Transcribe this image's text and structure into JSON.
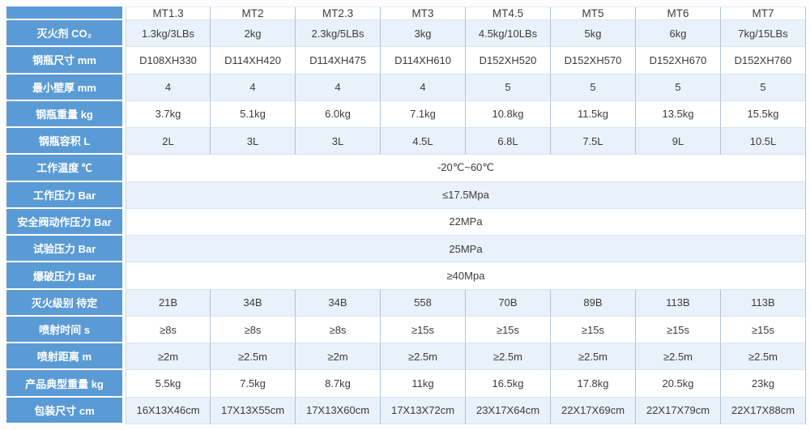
{
  "table": {
    "columns": [
      "",
      "MT1.3",
      "MT2",
      "MT2.3",
      "MT3",
      "MT4.5",
      "MT5",
      "MT6",
      "MT7"
    ],
    "rows": [
      {
        "label": "灭火剂 CO₂",
        "type": "cells",
        "values": [
          "1.3kg/3LBs",
          "2kg",
          "2.3kg/5LBs",
          "3kg",
          "4.5kg/10LBs",
          "5kg",
          "6kg",
          "7kg/15LBs"
        ]
      },
      {
        "label": "钢瓶尺寸 mm",
        "type": "cells",
        "values": [
          "D108XH330",
          "D114XH420",
          "D114XH475",
          "D114XH610",
          "D152XH520",
          "D152XH570",
          "D152XH670",
          "D152XH760"
        ]
      },
      {
        "label": "最小壁厚 mm",
        "type": "cells",
        "values": [
          "4",
          "4",
          "4",
          "4",
          "5",
          "5",
          "5",
          "5"
        ]
      },
      {
        "label": "钢瓶重量 kg",
        "type": "cells",
        "values": [
          "3.7kg",
          "5.1kg",
          "6.0kg",
          "7.1kg",
          "10.8kg",
          "11.5kg",
          "13.5kg",
          "15.5kg"
        ]
      },
      {
        "label": "钢瓶容积 L",
        "type": "cells",
        "values": [
          "2L",
          "3L",
          "3L",
          "4.5L",
          "6.8L",
          "7.5L",
          "9L",
          "10.5L"
        ]
      },
      {
        "label": "工作温度 ℃",
        "type": "merged",
        "value": "-20℃~60℃"
      },
      {
        "label": "工作压力 Bar",
        "type": "merged",
        "value": "≤17.5Mpa"
      },
      {
        "label": "安全阀动作压力 Bar",
        "type": "merged",
        "value": "22MPa"
      },
      {
        "label": "试验压力 Bar",
        "type": "merged",
        "value": "25MPa"
      },
      {
        "label": "爆破压力 Bar",
        "type": "merged",
        "value": "≥40Mpa"
      },
      {
        "label": "灭火级别 待定",
        "type": "cells",
        "values": [
          "21B",
          "34B",
          "34B",
          "558",
          "70B",
          "89B",
          "113B",
          "113B"
        ]
      },
      {
        "label": "喷射时间 s",
        "type": "cells",
        "values": [
          "≥8s",
          "≥8s",
          "≥8s",
          "≥15s",
          "≥15s",
          "≥15s",
          "≥15s",
          "≥15s"
        ]
      },
      {
        "label": "喷射距离 m",
        "type": "cells",
        "values": [
          "≥2m",
          "≥2.5m",
          "≥2m",
          "≥2.5m",
          "≥2.5m",
          "≥2.5m",
          "≥2.5m",
          "≥2.5m"
        ]
      },
      {
        "label": "产品典型重量 kg",
        "type": "cells",
        "values": [
          "5.5kg",
          "7.5kg",
          "8.7kg",
          "11kg",
          "16.5kg",
          "17.8kg",
          "20.5kg",
          "23kg"
        ]
      },
      {
        "label": "包装尺寸 cm",
        "type": "cells",
        "values": [
          "16X13X46cm",
          "17X13X55cm",
          "17X13X60cm",
          "17X13X72cm",
          "23X17X64cm",
          "22X17X69cm",
          "22X17X79cm",
          "22X17X88cm"
        ]
      }
    ],
    "colors": {
      "label_bg": "#5b9bd5",
      "label_text": "#ffffff",
      "row_alt_bg": "#e9f1fa",
      "row_bg": "#ffffff",
      "grid_vertical": "#b3c3d2",
      "grid_horizontal": "#d6e4f3",
      "data_text": "#3c3c3c"
    }
  }
}
